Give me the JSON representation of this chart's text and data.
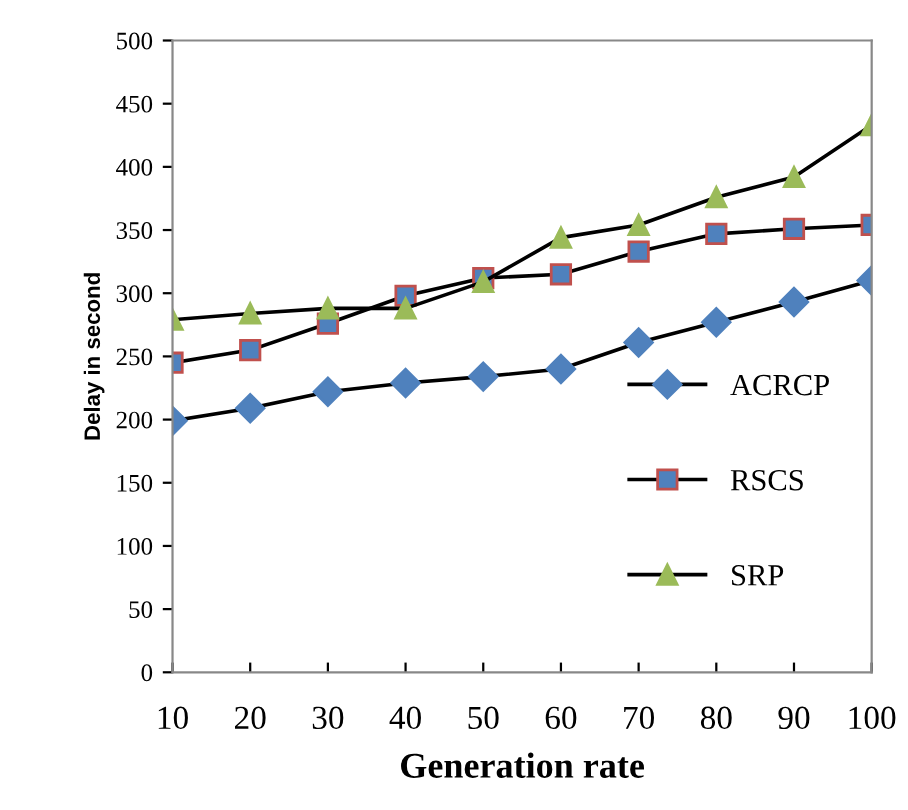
{
  "chart_data": {
    "type": "line",
    "xlabel": "Generation rate",
    "ylabel": "Delay in second",
    "x": [
      10,
      20,
      30,
      40,
      50,
      60,
      70,
      80,
      90,
      100
    ],
    "series": [
      {
        "name": "ACRCP",
        "color": "#4f81bd",
        "marker": "diamond",
        "values": [
          199,
          209,
          222,
          229,
          234,
          240,
          261,
          277,
          293,
          310
        ]
      },
      {
        "name": "RSCS",
        "color": "#4f81bd",
        "marker": "square",
        "values": [
          245,
          255,
          276,
          298,
          312,
          315,
          333,
          347,
          351,
          354
        ]
      },
      {
        "name": "SRP",
        "color": "#9bbb59",
        "marker": "triangle",
        "values": [
          279,
          284,
          288,
          288,
          309,
          344,
          354,
          376,
          392,
          433
        ]
      }
    ],
    "xlim": [
      10,
      100
    ],
    "xticks": [
      10,
      20,
      30,
      40,
      50,
      60,
      70,
      80,
      90,
      100
    ],
    "ylim": [
      0,
      500
    ],
    "yticks": [
      0,
      50,
      100,
      150,
      200,
      250,
      300,
      350,
      400,
      450,
      500
    ],
    "grid": false,
    "legend": "right"
  }
}
